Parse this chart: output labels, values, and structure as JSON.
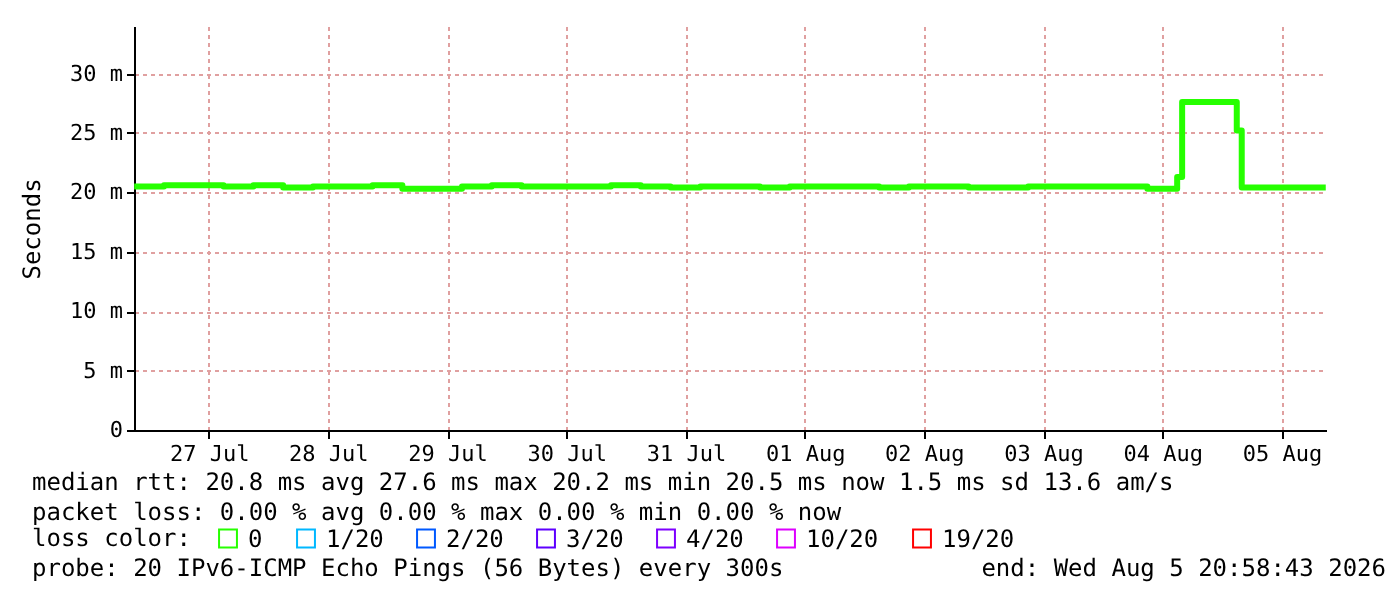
{
  "chart_data": {
    "type": "step",
    "ylabel": "Seconds",
    "legend_title": "loss color:",
    "legend": "bottom",
    "grid": true,
    "marker": "none",
    "line_style": "solid",
    "xlim": [
      "2026-07-26T20:58",
      "2026-08-05T20:58"
    ],
    "xticks": [
      {
        "value": "2026-07-27T12:00",
        "label": "27 Jul"
      },
      {
        "value": "2026-07-28T12:00",
        "label": "28 Jul"
      },
      {
        "value": "2026-07-29T12:00",
        "label": "29 Jul"
      },
      {
        "value": "2026-07-30T12:00",
        "label": "30 Jul"
      },
      {
        "value": "2026-07-31T12:00",
        "label": "31 Jul"
      },
      {
        "value": "2026-08-01T12:00",
        "label": "01 Aug"
      },
      {
        "value": "2026-08-02T12:00",
        "label": "02 Aug"
      },
      {
        "value": "2026-08-03T12:00",
        "label": "03 Aug"
      },
      {
        "value": "2026-08-04T12:00",
        "label": "04 Aug"
      },
      {
        "value": "2026-08-05T12:00",
        "label": "05 Aug"
      }
    ],
    "ylim": [
      0,
      34
    ],
    "yticks": [
      0,
      {
        "value": 5,
        "label": "5 m"
      },
      {
        "value": 10,
        "label": "10 m"
      },
      {
        "value": 15,
        "label": "15 m"
      },
      {
        "value": 20,
        "label": "20 m"
      },
      {
        "value": 25,
        "label": "25 m"
      },
      {
        "value": 30,
        "label": "30 m"
      }
    ],
    "x": [
      "2026-07-26T21:00",
      "2026-07-27T03:00",
      "2026-07-27T09:00",
      "2026-07-27T15:00",
      "2026-07-27T21:00",
      "2026-07-28T03:00",
      "2026-07-28T09:00",
      "2026-07-28T15:00",
      "2026-07-28T21:00",
      "2026-07-29T03:00",
      "2026-07-29T09:00",
      "2026-07-29T15:00",
      "2026-07-29T21:00",
      "2026-07-30T03:00",
      "2026-07-30T09:00",
      "2026-07-30T15:00",
      "2026-07-30T21:00",
      "2026-07-31T03:00",
      "2026-07-31T09:00",
      "2026-07-31T15:00",
      "2026-07-31T21:00",
      "2026-08-01T03:00",
      "2026-08-01T09:00",
      "2026-08-01T15:00",
      "2026-08-01T21:00",
      "2026-08-02T03:00",
      "2026-08-02T09:00",
      "2026-08-02T15:00",
      "2026-08-02T21:00",
      "2026-08-03T03:00",
      "2026-08-03T09:00",
      "2026-08-03T15:00",
      "2026-08-03T21:00",
      "2026-08-04T03:00",
      "2026-08-04T09:00",
      "2026-08-04T15:00",
      "2026-08-04T16:00",
      "2026-08-05T03:00",
      "2026-08-05T04:00",
      "2026-08-05T12:00",
      "2026-08-05T20:55"
    ],
    "series": [
      {
        "name": "0",
        "color": "#26ff00",
        "values": [
          20.5,
          20.6,
          20.6,
          20.5,
          20.6,
          20.4,
          20.5,
          20.5,
          20.6,
          20.3,
          20.3,
          20.5,
          20.6,
          20.5,
          20.5,
          20.5,
          20.6,
          20.5,
          20.4,
          20.5,
          20.5,
          20.4,
          20.5,
          20.5,
          20.5,
          20.4,
          20.5,
          20.5,
          20.4,
          20.4,
          20.5,
          20.5,
          20.5,
          20.5,
          20.3,
          21.3,
          27.6,
          25.2,
          20.4,
          20.4,
          20.4
        ]
      },
      {
        "name": "1/20",
        "color": "#00b8ff",
        "values": [
          null,
          null,
          null,
          null,
          null,
          null,
          null,
          null,
          null,
          null,
          null,
          null,
          null,
          null,
          null,
          null,
          null,
          null,
          null,
          null,
          null,
          null,
          null,
          null,
          null,
          null,
          null,
          null,
          null,
          null,
          null,
          null,
          null,
          null,
          null,
          null,
          null,
          null,
          null,
          null,
          null
        ]
      },
      {
        "name": "2/20",
        "color": "#0059ff",
        "values": [
          null,
          null,
          null,
          null,
          null,
          null,
          null,
          null,
          null,
          null,
          null,
          null,
          null,
          null,
          null,
          null,
          null,
          null,
          null,
          null,
          null,
          null,
          null,
          null,
          null,
          null,
          null,
          null,
          null,
          null,
          null,
          null,
          null,
          null,
          null,
          null,
          null,
          null,
          null,
          null,
          null
        ]
      },
      {
        "name": "3/20",
        "color": "#5e00ff",
        "values": [
          null,
          null,
          null,
          null,
          null,
          null,
          null,
          null,
          null,
          null,
          null,
          null,
          null,
          null,
          null,
          null,
          null,
          null,
          null,
          null,
          null,
          null,
          null,
          null,
          null,
          null,
          null,
          null,
          null,
          null,
          null,
          null,
          null,
          null,
          null,
          null,
          null,
          null,
          null,
          null,
          null
        ]
      },
      {
        "name": "4/20",
        "color": "#7e00ff",
        "values": [
          null,
          null,
          null,
          null,
          null,
          null,
          null,
          null,
          null,
          null,
          null,
          null,
          null,
          null,
          null,
          null,
          null,
          null,
          null,
          null,
          null,
          null,
          null,
          null,
          null,
          null,
          null,
          null,
          null,
          null,
          null,
          null,
          null,
          null,
          null,
          null,
          null,
          null,
          null,
          null,
          null
        ]
      },
      {
        "name": "10/20",
        "color": "#dd00ff",
        "values": [
          null,
          null,
          null,
          null,
          null,
          null,
          null,
          null,
          null,
          null,
          null,
          null,
          null,
          null,
          null,
          null,
          null,
          null,
          null,
          null,
          null,
          null,
          null,
          null,
          null,
          null,
          null,
          null,
          null,
          null,
          null,
          null,
          null,
          null,
          null,
          null,
          null,
          null,
          null,
          null,
          null
        ]
      },
      {
        "name": "19/20",
        "color": "#ff0000",
        "values": [
          null,
          null,
          null,
          null,
          null,
          null,
          null,
          null,
          null,
          null,
          null,
          null,
          null,
          null,
          null,
          null,
          null,
          null,
          null,
          null,
          null,
          null,
          null,
          null,
          null,
          null,
          null,
          null,
          null,
          null,
          null,
          null,
          null,
          null,
          null,
          null,
          null,
          null,
          null,
          null,
          null
        ]
      }
    ],
    "annotations": [
      "median rtt:  20.8 ms avg  27.6 ms max  20.2 ms min  20.5 ms now  1.5 ms sd  13.6   am/s",
      "packet loss: 0.00 % avg  0.00 % max  0.00 % min  0.00 % now",
      "probe:       20 IPv6-ICMP Echo Pings (56 Bytes) every 300s",
      "end: Wed Aug  5 20:58:43 2026"
    ]
  }
}
